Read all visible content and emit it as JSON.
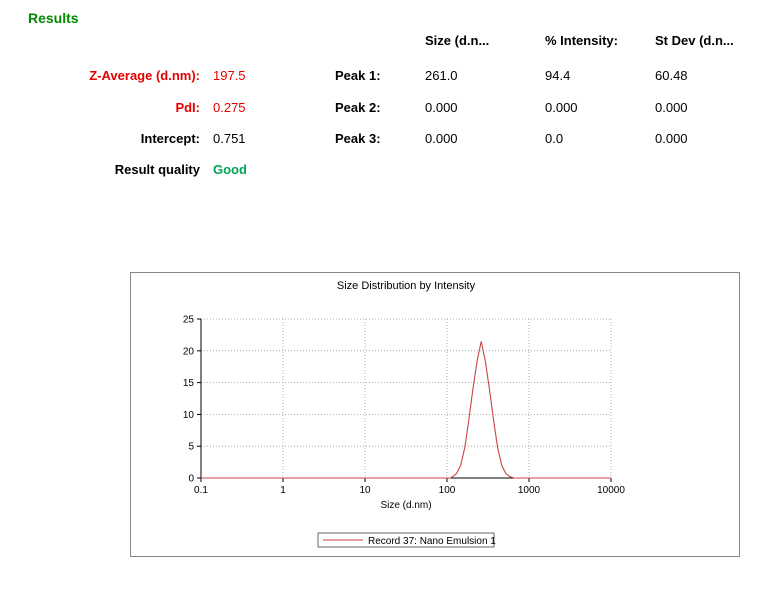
{
  "results": {
    "title": "Results",
    "header": {
      "size": "Size (d.n...",
      "intensity": "% Intensity:",
      "stdev": "St Dev (d.n..."
    },
    "summary": [
      {
        "label": "Z-Average (d.nm):",
        "value": "197.5"
      },
      {
        "label": "PdI:",
        "value": "0.275"
      },
      {
        "label": "Intercept:",
        "value": "0.751"
      },
      {
        "label": "Result quality",
        "value": "Good"
      }
    ],
    "peaks": [
      {
        "label": "Peak 1:",
        "size": "261.0",
        "intensity": "94.4",
        "stdev": "60.48"
      },
      {
        "label": "Peak 2:",
        "size": "0.000",
        "intensity": "0.000",
        "stdev": "0.000"
      },
      {
        "label": "Peak 3:",
        "size": "0.000",
        "intensity": "0.0",
        "stdev": "0.000"
      }
    ]
  },
  "colors": {
    "title_green": "#008a00",
    "good_green": "#00a551",
    "value_red": "#e60000",
    "curve_red": "#cc4646"
  },
  "chart_data": {
    "type": "line",
    "title": "Size Distribution by Intensity",
    "xlabel": "Size (d.nm)",
    "ylabel": "",
    "x_scale": "log",
    "xlim": [
      0.1,
      10000
    ],
    "x_ticks": [
      "0.1",
      "1",
      "10",
      "100",
      "1000",
      "10000"
    ],
    "ylim": [
      0,
      25
    ],
    "y_ticks": [
      0,
      5,
      10,
      15,
      20,
      25
    ],
    "grid": true,
    "legend_position": "bottom-center",
    "legend": [
      "Record 37:  Nano Emulsion 1"
    ],
    "series": [
      {
        "name": "Record 37:  Nano Emulsion 1",
        "color": "#cc4646",
        "points": [
          [
            0.1,
            0
          ],
          [
            110,
            0
          ],
          [
            117,
            0.2
          ],
          [
            131,
            0.7
          ],
          [
            147,
            2.0
          ],
          [
            165,
            4.8
          ],
          [
            185,
            9.2
          ],
          [
            207,
            14.0
          ],
          [
            233,
            18.4
          ],
          [
            261,
            21.5
          ],
          [
            293,
            18.4
          ],
          [
            329,
            14.0
          ],
          [
            369,
            9.2
          ],
          [
            414,
            4.8
          ],
          [
            464,
            2.0
          ],
          [
            521,
            0.7
          ],
          [
            585,
            0.2
          ],
          [
            660,
            0
          ],
          [
            10000,
            0
          ]
        ]
      }
    ]
  }
}
